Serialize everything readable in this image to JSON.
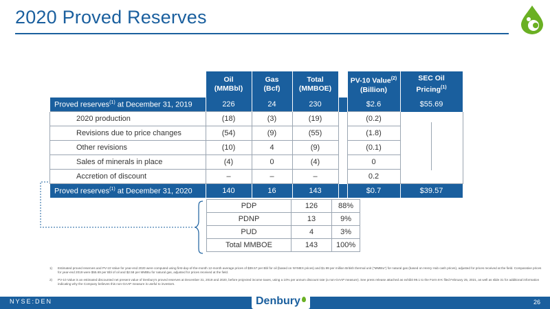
{
  "title": "2020 Proved Reserves",
  "colors": {
    "brand_blue": "#1a5f9e",
    "brand_green": "#6ab023"
  },
  "logo_icon": "denbury-drop-logo-icon",
  "main_table": {
    "headers": {
      "oil": [
        "Oil",
        "(MMBbl)"
      ],
      "gas": [
        "Gas",
        "(Bcf)"
      ],
      "total": [
        "Total",
        "(MMBOE)"
      ],
      "pv10": [
        "PV-10 Value",
        "(2)",
        "(Billion)"
      ],
      "sec": [
        "SEC Oil",
        "Pricing",
        "(1)"
      ]
    },
    "rows": [
      {
        "label": "Proved reserves",
        "sup": "(1)",
        "label_tail": " at December 31, 2019",
        "oil": "226",
        "gas": "24",
        "total": "230",
        "pv10": "$2.6",
        "sec": "$55.69"
      },
      {
        "label": "2020 production",
        "oil": "(18)",
        "gas": "(3)",
        "total": "(19)",
        "pv10": "(0.2)"
      },
      {
        "label": "Revisions due to price changes",
        "oil": "(54)",
        "gas": "(9)",
        "total": "(55)",
        "pv10": "(1.8)"
      },
      {
        "label": "Other revisions",
        "oil": "(10)",
        "gas": "4",
        "total": "(9)",
        "pv10": "(0.1)"
      },
      {
        "label": "Sales of minerals in place",
        "oil": "(4)",
        "gas": "0",
        "total": "(4)",
        "pv10": "0"
      },
      {
        "label": "Accretion of discount",
        "oil": "–",
        "gas": "–",
        "total": "–",
        "pv10": "0.2"
      },
      {
        "label": "Proved reserves",
        "sup": "(1)",
        "label_tail": " at December 31, 2020",
        "oil": "140",
        "gas": "16",
        "total": "143",
        "pv10": "$0.7",
        "sec": "$39.57"
      }
    ]
  },
  "sub_table": {
    "rows": [
      {
        "label": "PDP",
        "value": "126",
        "pct": "88%"
      },
      {
        "label": "PDNP",
        "value": "13",
        "pct": "9%"
      },
      {
        "label": "PUD",
        "value": "4",
        "pct": "3%"
      },
      {
        "label": "Total MMBOE",
        "value": "143",
        "pct": "100%"
      }
    ]
  },
  "footnotes": [
    {
      "num": "1)",
      "text": "Estimated proved reserves and PV-10 Value for year-end 2020 were computed using first-day-of-the-month 12-month average prices of $39.57 per Bbl for oil (based on NYMEX prices) and $1.99 per million British thermal unit (\"MMBtu\") for natural gas (based on Henry Hub cash prices), adjusted for prices received at the field. Comparative prices for year-end 2019 were $55.69 per Bbl of oil and $2.58 per MMBtu for natural gas, adjusted for prices received at the field."
    },
    {
      "num": "2)",
      "text": "PV-10 Value is an estimated discounted net present value of Denbury's proved reserves at December 31, 2019 and 2020, before projected income taxes, using a 10% per annum discount rate (a non-GAAP measure). See press release attached as exhibit 99.1 to the Form 8-K filed February 25, 2021, as well as slide 31 for additional information indicating why the Company believes this non-GAAP measure is useful to investors."
    }
  ],
  "footer": {
    "ticker": "NYSE:DEN",
    "company": "Denbury",
    "page": "26"
  }
}
